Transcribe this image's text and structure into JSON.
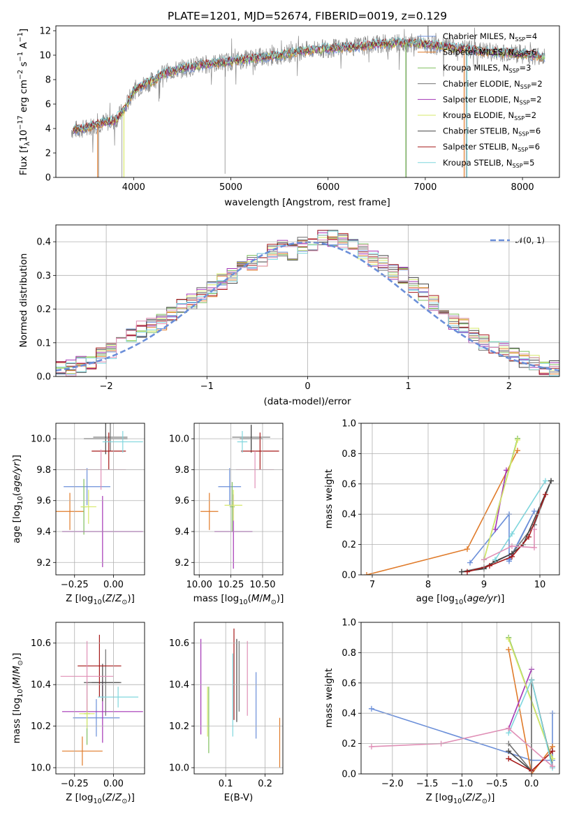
{
  "colors": {
    "series": [
      "#6b8fd9",
      "#e07b2a",
      "#7fbf5f",
      "#6f6f6f",
      "#a334b5",
      "#d6e86a",
      "#444444",
      "#a51818",
      "#7fd6dd",
      "#e08fb6"
    ],
    "obs": "#888888",
    "grid": "#b0b0b0",
    "normal": "#6b8fd9"
  },
  "series_names": [
    "Chabrier MILES",
    "Salpeter MILES",
    "Kroupa MILES",
    "Chabrier ELODIE",
    "Salpeter ELODIE",
    "Kroupa ELODIE",
    "Chabrier STELIB",
    "Salpeter STELIB",
    "Kroupa STELIB"
  ],
  "chart_data": [
    {
      "type": "line",
      "title": "PLATE=1201, MJD=52674, FIBERID=0019, z=0.129",
      "xlabel": "wavelength [Angstrom, rest frame]",
      "ylabel": "Flux [f_λ 10^-17 erg cm^-2 s^-1 A^-1]",
      "xlim": [
        3200,
        8380
      ],
      "ylim": [
        0,
        12.4
      ],
      "xticks": [
        4000,
        5000,
        6000,
        7000,
        8000
      ],
      "yticks": [
        0,
        2,
        4,
        6,
        8,
        10,
        12
      ],
      "legend_position": "top-right",
      "legend": [
        {
          "name": "Chabrier MILES",
          "nssp": "4"
        },
        {
          "name": "Salpeter MILES",
          "nssp": "6"
        },
        {
          "name": "Kroupa MILES",
          "nssp": "3"
        },
        {
          "name": "Chabrier ELODIE",
          "nssp": "2"
        },
        {
          "name": "Salpeter ELODIE",
          "nssp": "2"
        },
        {
          "name": "Kroupa ELODIE",
          "nssp": "2"
        },
        {
          "name": "Chabrier STELIB",
          "nssp": "6"
        },
        {
          "name": "Salpeter STELIB",
          "nssp": "6"
        },
        {
          "name": "Kroupa STELIB",
          "nssp": "5"
        }
      ],
      "continuum": {
        "x": [
          3400,
          3500,
          3600,
          3700,
          3800,
          3900,
          4000,
          4100,
          4200,
          4300,
          4500,
          4700,
          4900,
          5100,
          5300,
          5500,
          5700,
          5900,
          6100,
          6300,
          6500,
          6700,
          6900,
          7100,
          7400,
          7600,
          7800,
          8000,
          8200
        ],
        "y": [
          3.9,
          4.0,
          4.3,
          4.5,
          4.6,
          5.5,
          7.1,
          7.6,
          7.9,
          8.5,
          8.9,
          9.2,
          9.4,
          9.6,
          9.8,
          10.0,
          10.3,
          10.5,
          10.6,
          10.7,
          10.9,
          11.0,
          11.0,
          10.8,
          10.5,
          10.3,
          10.2,
          10.1,
          9.9
        ]
      }
    },
    {
      "type": "histogram",
      "xlabel": "(data-model)/error",
      "ylabel": "Normed distribution",
      "xlim": [
        -2.5,
        2.5
      ],
      "ylim": [
        0,
        0.45
      ],
      "xticks": [
        -2,
        -1,
        0,
        1,
        2
      ],
      "yticks": [
        0.0,
        0.1,
        0.2,
        0.3,
        0.4
      ],
      "legend_label": "𝒩(0, 1)",
      "legend_position": "top-right",
      "bin_edges": [
        -2.5,
        -2.4,
        -2.3,
        -2.2,
        -2.1,
        -2.0,
        -1.9,
        -1.8,
        -1.7,
        -1.6,
        -1.5,
        -1.4,
        -1.3,
        -1.2,
        -1.1,
        -1.0,
        -0.9,
        -0.8,
        -0.7,
        -0.6,
        -0.5,
        -0.4,
        -0.3,
        -0.2,
        -0.1,
        0.0,
        0.1,
        0.2,
        0.3,
        0.4,
        0.5,
        0.6,
        0.7,
        0.8,
        0.9,
        1.0,
        1.1,
        1.2,
        1.3,
        1.4,
        1.5,
        1.6,
        1.7,
        1.8,
        1.9,
        2.0,
        2.1,
        2.2,
        2.3,
        2.4,
        2.5
      ],
      "envelope": [
        0.02,
        0.025,
        0.035,
        0.045,
        0.06,
        0.075,
        0.1,
        0.12,
        0.14,
        0.15,
        0.16,
        0.19,
        0.21,
        0.22,
        0.24,
        0.26,
        0.28,
        0.3,
        0.32,
        0.34,
        0.35,
        0.37,
        0.38,
        0.37,
        0.39,
        0.39,
        0.41,
        0.41,
        0.4,
        0.39,
        0.37,
        0.35,
        0.34,
        0.31,
        0.3,
        0.27,
        0.25,
        0.22,
        0.19,
        0.16,
        0.15,
        0.12,
        0.1,
        0.09,
        0.08,
        0.06,
        0.05,
        0.04,
        0.03,
        0.025
      ],
      "normal_mean": 0,
      "normal_sigma": 1
    },
    {
      "type": "errorbar",
      "xlabel": "Z [log10(Z/Z_sun)]",
      "ylabel": "age [log10(age/yr)]",
      "xlim": [
        -0.37,
        0.2
      ],
      "ylim": [
        9.12,
        10.1
      ],
      "xticks": [
        -0.25,
        0.0
      ],
      "yticks": [
        9.2,
        9.4,
        9.6,
        9.8,
        10.0
      ],
      "points": [
        {
          "x": -0.17,
          "xerr": 0.15,
          "y": 9.69,
          "yerr": 0.12
        },
        {
          "x": -0.28,
          "xerr": 0.09,
          "y": 9.53,
          "yerr": 0.12
        },
        {
          "x": -0.19,
          "xerr": 0.02,
          "y": 9.56,
          "yerr": 0.18
        },
        {
          "x": -0.02,
          "xerr": 0.11,
          "y": 10.01,
          "yerr": 0.09
        },
        {
          "x": -0.07,
          "xerr": 0.26,
          "y": 9.4,
          "yerr": 0.23
        },
        {
          "x": -0.16,
          "xerr": 0.05,
          "y": 9.56,
          "yerr": 0.11
        },
        {
          "x": -0.05,
          "xerr": 0.14,
          "y": 10.0,
          "yerr": 0.1
        },
        {
          "x": -0.03,
          "xerr": 0.11,
          "y": 9.92,
          "yerr": 0.12
        },
        {
          "x": 0.06,
          "xerr": 0.13,
          "y": 9.98,
          "yerr": 0.07
        },
        {
          "x": -0.08,
          "xerr": 0.16,
          "y": 9.8,
          "yerr": 0.13
        }
      ]
    },
    {
      "type": "errorbar",
      "xlabel": "mass [log10(M/M_sun)]",
      "ylim": [
        9.12,
        10.1
      ],
      "xlim": [
        9.96,
        10.66
      ],
      "xticks": [
        10.0,
        10.25,
        10.5
      ],
      "xticklabels": [
        "10.00",
        "10.25",
        "10.50"
      ],
      "yticks": [
        9.2,
        9.4,
        9.6,
        9.8,
        10.0
      ],
      "points": [
        {
          "x": 10.24,
          "xerr": 0.09,
          "y": 9.69,
          "yerr": 0.12
        },
        {
          "x": 10.08,
          "xerr": 0.07,
          "y": 9.53,
          "yerr": 0.12
        },
        {
          "x": 10.26,
          "xerr": 0.02,
          "y": 9.56,
          "yerr": 0.16
        },
        {
          "x": 10.41,
          "xerr": 0.15,
          "y": 10.01,
          "yerr": 0.08
        },
        {
          "x": 10.27,
          "xerr": 0.15,
          "y": 9.4,
          "yerr": 0.24
        },
        {
          "x": 10.27,
          "xerr": 0.07,
          "y": 9.57,
          "yerr": 0.1
        },
        {
          "x": 10.41,
          "xerr": 0.09,
          "y": 10.0,
          "yerr": 0.09
        },
        {
          "x": 10.48,
          "xerr": 0.15,
          "y": 9.92,
          "yerr": 0.12
        },
        {
          "x": 10.34,
          "xerr": 0.04,
          "y": 9.98,
          "yerr": 0.07
        },
        {
          "x": 10.44,
          "xerr": 0.15,
          "y": 9.8,
          "yerr": 0.12
        }
      ]
    },
    {
      "type": "line",
      "xlabel": "age [log10(age/yr)]",
      "ylabel": "mass weight",
      "xlim": [
        6.8,
        10.35
      ],
      "ylim": [
        0,
        1
      ],
      "xticks": [
        7,
        8,
        9,
        10
      ],
      "yticks": [
        0.0,
        0.2,
        0.4,
        0.6,
        0.8,
        1.0
      ],
      "series": [
        {
          "x": [
            8.75,
            9.45,
            9.45,
            9.9,
            9.45
          ],
          "y": [
            0.08,
            0.4,
            0.1,
            0.42,
            0.09
          ]
        },
        {
          "x": [
            6.9,
            8.7,
            9.6
          ],
          "y": [
            0.0,
            0.17,
            0.82
          ]
        },
        {
          "x": [
            9.0,
            9.6
          ],
          "y": [
            0.1,
            0.9
          ]
        },
        {
          "x": [
            8.6,
            9.0,
            9.5,
            9.9,
            10.2
          ],
          "y": [
            0.02,
            0.05,
            0.14,
            0.33,
            0.62
          ]
        },
        {
          "x": [
            9.2,
            9.4
          ],
          "y": [
            0.3,
            0.69
          ]
        },
        {
          "x": [
            9.0,
            9.6
          ],
          "y": [
            0.1,
            0.89
          ]
        },
        {
          "x": [
            8.6,
            9.0,
            9.2,
            9.5,
            9.7,
            10.2
          ],
          "y": [
            0.02,
            0.04,
            0.09,
            0.14,
            0.2,
            0.62
          ]
        },
        {
          "x": [
            8.7,
            9.1,
            9.5,
            9.8,
            10.1
          ],
          "y": [
            0.02,
            0.06,
            0.12,
            0.25,
            0.53
          ]
        },
        {
          "x": [
            9.2,
            9.5,
            10.1
          ],
          "y": [
            0.1,
            0.27,
            0.62
          ]
        },
        {
          "x": [
            9.0,
            9.5,
            9.9,
            9.9
          ],
          "y": [
            0.1,
            0.19,
            0.18,
            0.3
          ]
        }
      ]
    },
    {
      "type": "errorbar",
      "xlabel": "Z [log10(Z/Z_sun)]",
      "ylabel": "mass [log10(M/M_sun)]",
      "xlim": [
        -0.37,
        0.2
      ],
      "ylim": [
        9.97,
        10.7
      ],
      "xticks": [
        -0.25,
        0.0
      ],
      "yticks": [
        10.0,
        10.2,
        10.4,
        10.6
      ],
      "points": [
        {
          "x": -0.11,
          "xerr": 0.15,
          "y": 10.24,
          "yerr": 0.09
        },
        {
          "x": -0.2,
          "xerr": 0.13,
          "y": 10.08,
          "yerr": 0.07
        },
        {
          "x": -0.17,
          "xerr": 0.02,
          "y": 10.26,
          "yerr": 0.15
        },
        {
          "x": -0.05,
          "xerr": 0.09,
          "y": 10.41,
          "yerr": 0.16
        },
        {
          "x": -0.07,
          "xerr": 0.26,
          "y": 10.27,
          "yerr": 0.15
        },
        {
          "x": -0.17,
          "xerr": 0.05,
          "y": 10.26,
          "yerr": 0.07
        },
        {
          "x": -0.07,
          "xerr": 0.12,
          "y": 10.41,
          "yerr": 0.09
        },
        {
          "x": -0.09,
          "xerr": 0.14,
          "y": 10.49,
          "yerr": 0.15
        },
        {
          "x": 0.03,
          "xerr": 0.13,
          "y": 10.34,
          "yerr": 0.05
        },
        {
          "x": -0.17,
          "xerr": 0.17,
          "y": 10.44,
          "yerr": 0.17
        }
      ]
    },
    {
      "type": "errorbar",
      "xlabel": "E(B-V)",
      "xlim": [
        0.02,
        0.245
      ],
      "ylim": [
        9.97,
        10.7
      ],
      "xticks": [
        0.1,
        0.2
      ],
      "yticks": [
        10.0,
        10.2,
        10.4,
        10.6
      ],
      "points": [
        {
          "x": 0.177,
          "y": 10.3,
          "yerr": 0.16
        },
        {
          "x": 0.237,
          "y": 10.12,
          "yerr": 0.12
        },
        {
          "x": 0.057,
          "y": 10.23,
          "yerr": 0.16
        },
        {
          "x": 0.134,
          "y": 10.44,
          "yerr": 0.17
        },
        {
          "x": 0.037,
          "y": 10.39,
          "yerr": 0.23
        },
        {
          "x": 0.054,
          "y": 10.27,
          "yerr": 0.12
        },
        {
          "x": 0.128,
          "y": 10.42,
          "yerr": 0.2
        },
        {
          "x": 0.121,
          "y": 10.45,
          "yerr": 0.22
        },
        {
          "x": 0.118,
          "y": 10.35,
          "yerr": 0.2
        },
        {
          "x": 0.155,
          "y": 10.43,
          "yerr": 0.18
        }
      ]
    },
    {
      "type": "line",
      "xlabel": "Z [log10(Z/Z_sun)]",
      "ylabel": "mass weight",
      "xlim": [
        -2.45,
        0.4
      ],
      "ylim": [
        0,
        1
      ],
      "xticks": [
        -2.0,
        -1.5,
        -1.0,
        -0.5,
        0.0
      ],
      "yticks": [
        0.0,
        0.2,
        0.4,
        0.6,
        0.8,
        1.0
      ],
      "series": [
        {
          "x": [
            -2.3,
            0.0,
            0.3,
            0.3
          ],
          "y": [
            0.43,
            0.09,
            0.09,
            0.4
          ]
        },
        {
          "x": [
            -0.33,
            0.0,
            0.3
          ],
          "y": [
            0.82,
            0.0,
            0.18
          ]
        },
        {
          "x": [
            -0.33,
            0.3
          ],
          "y": [
            0.9,
            0.1
          ]
        },
        {
          "x": [
            -0.33,
            0.0,
            0.0
          ],
          "y": [
            0.2,
            0.02,
            0.62
          ]
        },
        {
          "x": [
            -0.33,
            0.0
          ],
          "y": [
            0.3,
            0.69
          ]
        },
        {
          "x": [
            -0.33,
            0.3
          ],
          "y": [
            0.89,
            0.1
          ]
        },
        {
          "x": [
            -0.33,
            0.0,
            0.0,
            0.3
          ],
          "y": [
            0.15,
            0.02,
            0.62,
            0.05
          ]
        },
        {
          "x": [
            -0.33,
            0.0,
            0.3
          ],
          "y": [
            0.1,
            0.02,
            0.15
          ]
        },
        {
          "x": [
            -0.33,
            0.0,
            0.3
          ],
          "y": [
            0.27,
            0.62,
            0.04
          ]
        },
        {
          "x": [
            -2.3,
            -1.3,
            -0.33,
            0.3
          ],
          "y": [
            0.18,
            0.2,
            0.3,
            0.05
          ]
        }
      ]
    }
  ]
}
